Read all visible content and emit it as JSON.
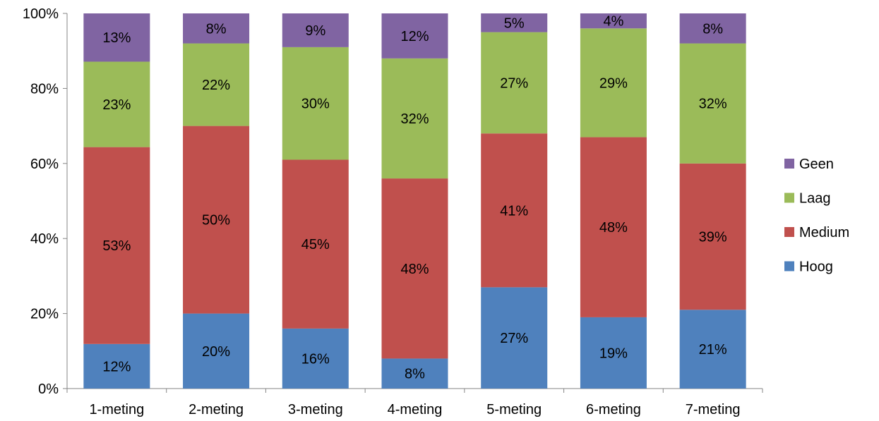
{
  "chart_data": {
    "type": "bar",
    "stacked": true,
    "percent_stacked": true,
    "categories": [
      "1-meting",
      "2-meting",
      "3-meting",
      "4-meting",
      "5-meting",
      "6-meting",
      "7-meting"
    ],
    "series": [
      {
        "name": "Hoog",
        "color": "#4f81bd",
        "values": [
          12,
          20,
          16,
          8,
          27,
          19,
          21
        ]
      },
      {
        "name": "Medium",
        "color": "#c0504d",
        "values": [
          53,
          50,
          45,
          48,
          41,
          48,
          39
        ]
      },
      {
        "name": "Laag",
        "color": "#9bbb59",
        "values": [
          23,
          22,
          30,
          32,
          27,
          29,
          32
        ]
      },
      {
        "name": "Geen",
        "color": "#8064a2",
        "values": [
          13,
          8,
          9,
          12,
          5,
          4,
          8
        ]
      }
    ],
    "data_label_suffix": "%",
    "y_ticks": [
      "0%",
      "20%",
      "40%",
      "60%",
      "80%",
      "100%"
    ],
    "ylim": [
      0,
      100
    ],
    "grid": false,
    "legend_position": "right",
    "legend_order": [
      "Geen",
      "Laag",
      "Medium",
      "Hoog"
    ],
    "title": "",
    "xlabel": "",
    "ylabel": ""
  }
}
